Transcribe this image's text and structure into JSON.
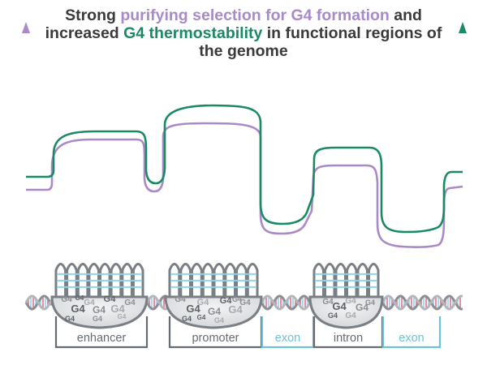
{
  "title": {
    "part1": "Strong ",
    "highlight_selection": "purifying selection for G4 formation",
    "part2": " and increased ",
    "highlight_thermo": "G4 thermostability",
    "part3": " in functional regions of the genome"
  },
  "colors": {
    "purple": "#a98ac9",
    "green": "#1b8a63",
    "dark": "#3a3a3c",
    "gray_region": "#666c74",
    "exon": "#6cc2d8",
    "dna_gray": "#8b8f94",
    "dna_blue": "#8fd3e6",
    "dna_pink": "#e46f8c"
  },
  "regions": [
    {
      "id": "enhancer",
      "label": "enhancer",
      "type": "functional"
    },
    {
      "id": "promoter",
      "label": "promoter",
      "type": "functional"
    },
    {
      "id": "exon1",
      "label": "exon",
      "type": "exon"
    },
    {
      "id": "intron",
      "label": "intron",
      "type": "functional"
    },
    {
      "id": "exon2",
      "label": "exon",
      "type": "exon"
    }
  ],
  "g4_labels": {
    "text": "G4"
  }
}
